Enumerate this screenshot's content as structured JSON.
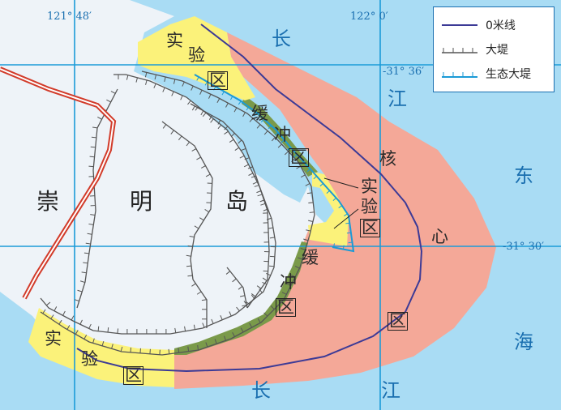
{
  "coordinates": {
    "lon_left": "121° 48′",
    "lon_right": "122° 0′",
    "lat_top": "-31° 36′",
    "lat_mid": "-31° 30′"
  },
  "legend": {
    "zero_meter_line": "0米线",
    "embankment": "大堤",
    "eco_embankment": "生态大堤"
  },
  "labels": {
    "island": [
      "崇",
      "明",
      "岛"
    ],
    "core": [
      "核",
      "心",
      "区"
    ],
    "buffer_top": [
      "缓",
      "冲",
      "区"
    ],
    "buffer_bottom": [
      "缓",
      "冲",
      "区"
    ],
    "exp_top": [
      "实",
      "验",
      "区"
    ],
    "exp_mid": [
      "实",
      "验",
      "区"
    ],
    "exp_bottom": [
      "实",
      "验",
      "区"
    ],
    "river_top": [
      "长",
      "江"
    ],
    "river_bottom": [
      "长",
      "江"
    ],
    "sea": [
      "东",
      "海"
    ]
  },
  "colors": {
    "water": "#a9dcf4",
    "land": "#eef3f8",
    "core_zone": "#f4a898",
    "buffer_zone": "#7a9a4a",
    "experimental_zone": "#fbf27a",
    "zero_meter_line": "#3c3a96",
    "embankment": "#555555",
    "eco_embankment": "#1a9ad6",
    "road": "#d23b2a",
    "grid": "#1b9bd8"
  }
}
